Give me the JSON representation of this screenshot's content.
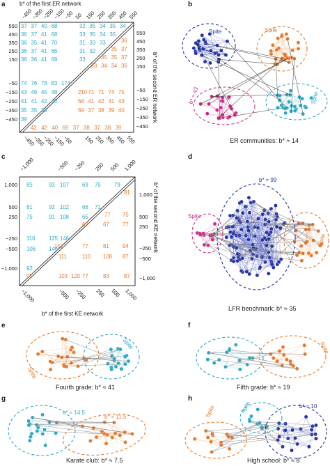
{
  "colors": {
    "cyan": "#2aa8c4",
    "orange": "#e8782a",
    "blue": "#2233aa",
    "magenta": "#d6258a",
    "gray": "#555555"
  },
  "panel_a": {
    "letter": "a",
    "top_title": "b* of the first ER network",
    "right_title": "b* of the second ER network",
    "top_ticks": [
      "−450",
      "−350",
      "−250",
      "−150",
      "−50",
      "50",
      "150",
      "250",
      "350",
      "450",
      "550"
    ],
    "bottom_ticks": [
      "−450",
      "−350",
      "−250",
      "−150",
      "−50",
      "150",
      "250",
      "350",
      "450",
      "550"
    ],
    "left_ticks": [
      "550",
      "450",
      "350",
      "250",
      "150",
      "−50",
      "−150",
      "−250",
      "−350",
      "−450"
    ],
    "right_ticks": [
      "550",
      "450",
      "350",
      "250",
      "150",
      "−50",
      "−150",
      "−250",
      "−350",
      "−450"
    ],
    "rows": [
      {
        "cyan_left": [
          "37",
          "37",
          "40",
          "68"
        ],
        "cyan_right": [
          "32",
          "35",
          "34",
          "35",
          "34"
        ]
      },
      {
        "cyan_left": [
          "36",
          "37",
          "41",
          "68"
        ],
        "cyan_right": [
          "33",
          "35",
          "34",
          "35"
        ],
        "orange": [
          "36"
        ]
      },
      {
        "cyan_left": [
          "36",
          "35",
          "41",
          "70"
        ],
        "cyan_right": [
          "31",
          "33",
          "33"
        ],
        "orange": [
          "35",
          "37"
        ]
      },
      {
        "cyan_left": [
          "36",
          "37",
          "41",
          "66"
        ],
        "cyan_right": [
          "31",
          "32"
        ],
        "orange": [
          "35",
          "35",
          "37"
        ]
      },
      {
        "cyan_left": [
          "36",
          "36",
          "41",
          "69"
        ],
        "cyan_right": [
          "33"
        ],
        "orange": [
          "33",
          "34",
          "34",
          "36"
        ]
      },
      {
        "cyan_left": [
          "74",
          "76",
          "78",
          "83",
          "174"
        ]
      },
      {
        "cyan_left": [
          "43",
          "46",
          "45",
          "48"
        ],
        "orange": [
          "210",
          "71",
          "71",
          "74",
          "75"
        ]
      },
      {
        "cyan_left": [
          "41",
          "41",
          "42",
          "40"
        ],
        "orange": [
          "68",
          "41",
          "42",
          "41",
          "43"
        ]
      },
      {
        "cyan_left": [
          "35",
          "35",
          "35"
        ],
        "orange": [
          "69",
          "37",
          "38",
          "39",
          "40"
        ]
      },
      {
        "cyan_left": [
          "39"
        ],
        "orange": [
          "42",
          "42",
          "40",
          "69",
          "37",
          "38",
          "37",
          "38",
          "39"
        ]
      }
    ]
  },
  "panel_b": {
    "letter": "b",
    "caption": "ER communities: b* ≈ 14",
    "labels": [
      "Spite",
      "Spite",
      "b* ≈ 43",
      "Spite"
    ]
  },
  "panel_c": {
    "letter": "c",
    "bottom_title": "b* of the first KE network",
    "right_title": "b* of the second KE network",
    "top_ticks": [
      "−1,000",
      "−500",
      "−250",
      "250",
      "500",
      "1,000"
    ],
    "bottom_ticks": [
      "−1,000",
      "−500",
      "−250",
      "250",
      "500",
      "1,000"
    ],
    "left_ticks": [
      "1,000",
      "500",
      "250",
      "−250",
      "−500",
      "−1,000"
    ],
    "right_ticks": [
      "1,000",
      "500",
      "250",
      "−250",
      "−500",
      "−1,000"
    ],
    "cyan": [
      [
        "85",
        "93",
        "107",
        "69",
        "75",
        "79"
      ],
      [
        "81",
        "93",
        "102",
        "66",
        "71"
      ],
      [
        "75",
        "91",
        "108",
        "65"
      ],
      [
        "116",
        "125",
        "146"
      ],
      [
        "106",
        "146"
      ],
      [
        "92"
      ]
    ],
    "orange": [
      [
        "81"
      ],
      [
        "77",
        "75"
      ],
      [
        "62",
        "67",
        "77"
      ],
      [
        "151",
        "77",
        "81",
        "94"
      ],
      [
        "111",
        "110",
        "108",
        "87"
      ],
      [
        "95",
        "103",
        "120",
        "77",
        "83",
        "87"
      ]
    ]
  },
  "panel_d": {
    "letter": "d",
    "caption": "LFR benchmark: b* ≈ 35",
    "labels": [
      "b* ≈ 99",
      "Spite",
      "Spite"
    ]
  },
  "panel_e": {
    "letter": "e",
    "caption": "Fourth grade: b* ≈ 41",
    "labels": [
      "Spite",
      "Spite"
    ]
  },
  "panel_f": {
    "letter": "f",
    "caption": "Fifth grade: b* ≈ 19",
    "labels": [
      "Spite"
    ]
  },
  "panel_g": {
    "letter": "g",
    "caption": "Karate club: b* ≈ 7.5",
    "labels": [
      "b* ≈ 14.5",
      "b* ≈ 11.5"
    ]
  },
  "panel_h": {
    "letter": "h",
    "caption": "High school: b* ≈ 8",
    "labels": [
      "Spite",
      "Spite",
      "b* ≈ 10"
    ]
  }
}
